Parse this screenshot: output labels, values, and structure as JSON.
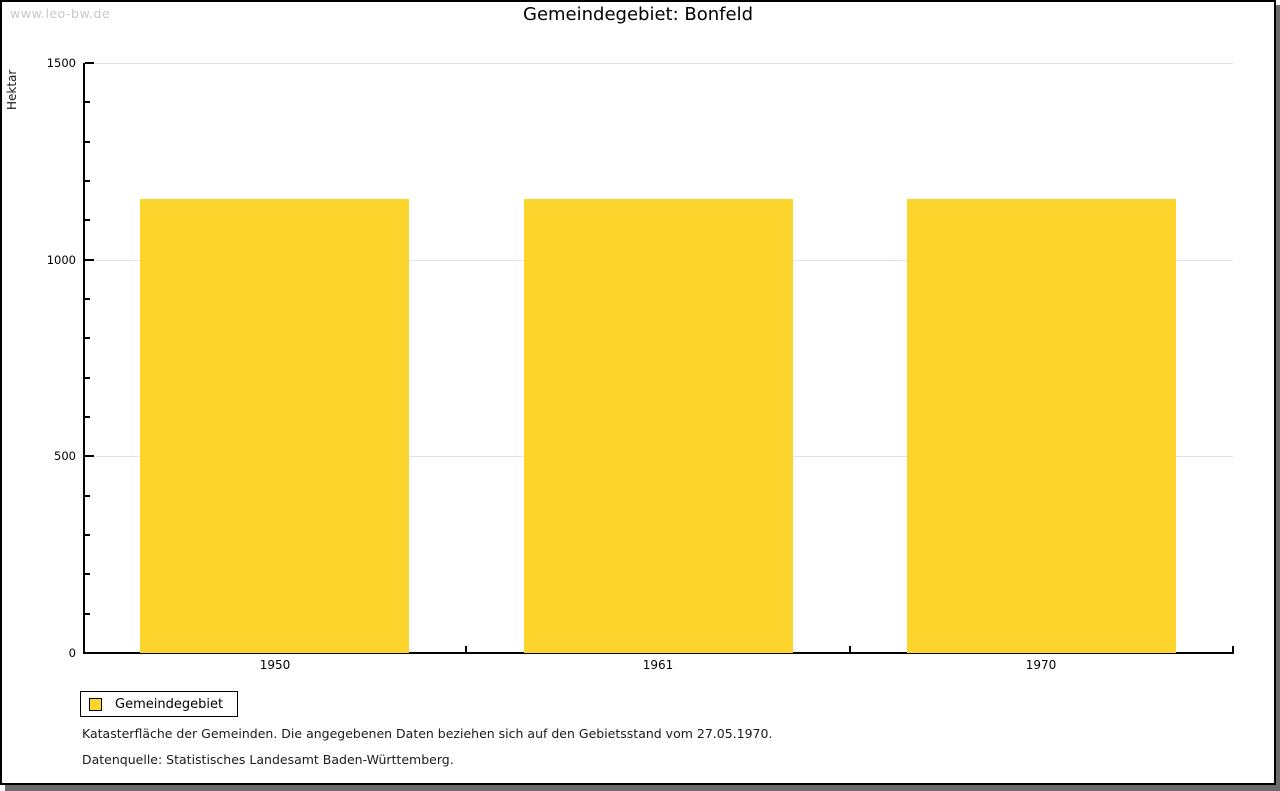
{
  "window": {
    "watermark": "www.leo-bw.de"
  },
  "chart_data": {
    "type": "bar",
    "title": "Gemeindegebiet: Bonfeld",
    "ylabel": "Hektar",
    "xlabel": "",
    "categories": [
      "1950",
      "1961",
      "1970"
    ],
    "series": [
      {
        "name": "Gemeindegebiet",
        "values": [
          1155,
          1155,
          1155
        ]
      }
    ],
    "ylim": [
      0,
      1500
    ],
    "ytick_major": [
      0,
      500,
      1000,
      1500
    ],
    "ytick_minor_step": 100,
    "grid": true,
    "legend_position": "bottom-left",
    "bar_color": "#fcd42c",
    "gridline_color": "#e2e2e2"
  },
  "legend": {
    "items": [
      {
        "label": "Gemeindegebiet",
        "color": "#fcd42c"
      }
    ]
  },
  "footnotes": [
    "Katasterfläche der Gemeinden. Die angegebenen Daten beziehen sich auf den Gebietsstand vom 27.05.1970.",
    "Datenquelle: Statistisches Landesamt Baden-Württemberg."
  ]
}
